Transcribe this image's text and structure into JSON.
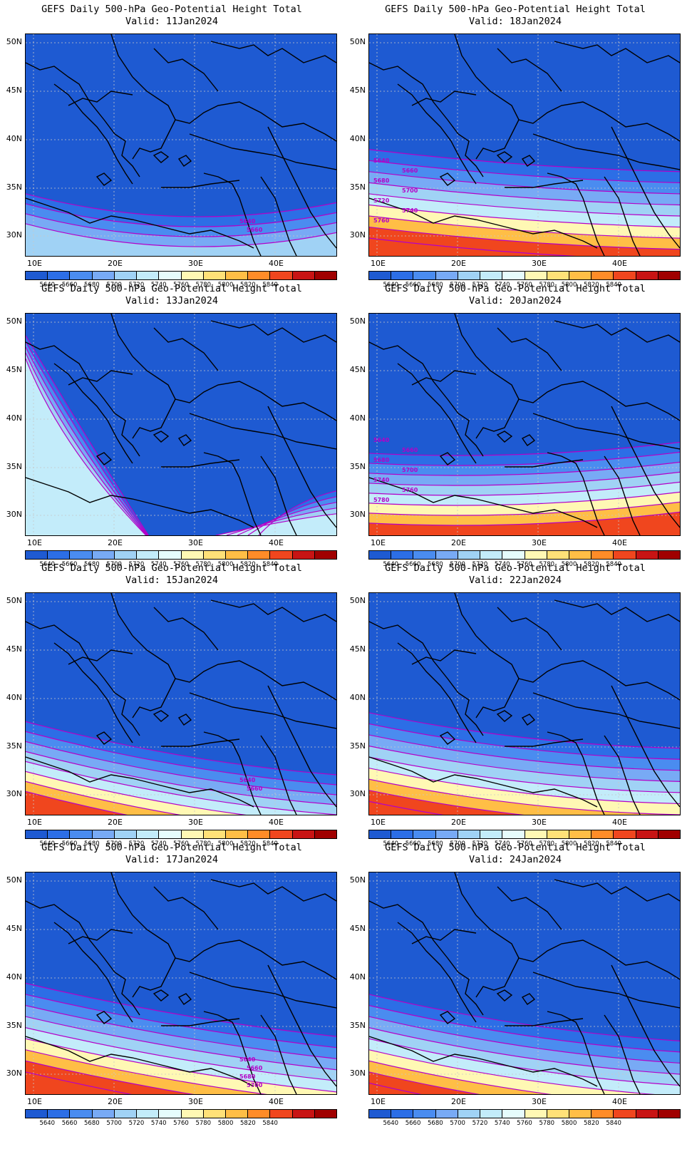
{
  "title_line1": "GEFS Daily 500-hPa Geo-Potential Height Total",
  "valid_prefix": "Valid: ",
  "lat_labels": [
    "50N",
    "45N",
    "40N",
    "35N",
    "30N"
  ],
  "lon_labels": [
    "10E",
    "20E",
    "30E",
    "40E"
  ],
  "colorbar": {
    "colors": [
      "#1e5ad2",
      "#2c6ee6",
      "#4a8cf0",
      "#78aaf5",
      "#a0d2f5",
      "#c3ecfa",
      "#e6fcfc",
      "#fff8b4",
      "#ffe178",
      "#ffbe46",
      "#ff8c28",
      "#f0461e",
      "#c81414",
      "#a00000"
    ],
    "labels": [
      "5640",
      "5660",
      "5680",
      "5700",
      "5720",
      "5740",
      "5760",
      "5780",
      "5800",
      "5820",
      "5840"
    ]
  },
  "contour_color": "#b400c8",
  "panels": [
    {
      "valid": "11Jan2024",
      "contour_labels": [
        "5640",
        "5660"
      ]
    },
    {
      "valid": "18Jan2024",
      "contour_labels": [
        "5640",
        "5660",
        "5680",
        "5700",
        "5720",
        "5740",
        "5760"
      ]
    },
    {
      "valid": "13Jan2024",
      "contour_labels": []
    },
    {
      "valid": "20Jan2024",
      "contour_labels": [
        "5640",
        "5660",
        "5680",
        "5700",
        "5740",
        "5760",
        "5780"
      ]
    },
    {
      "valid": "15Jan2024",
      "contour_labels": [
        "5640",
        "5660"
      ]
    },
    {
      "valid": "22Jan2024",
      "contour_labels": []
    },
    {
      "valid": "17Jan2024",
      "contour_labels": [
        "5640",
        "5660",
        "5680",
        "5700"
      ]
    },
    {
      "valid": "24Jan2024",
      "contour_labels": []
    }
  ]
}
